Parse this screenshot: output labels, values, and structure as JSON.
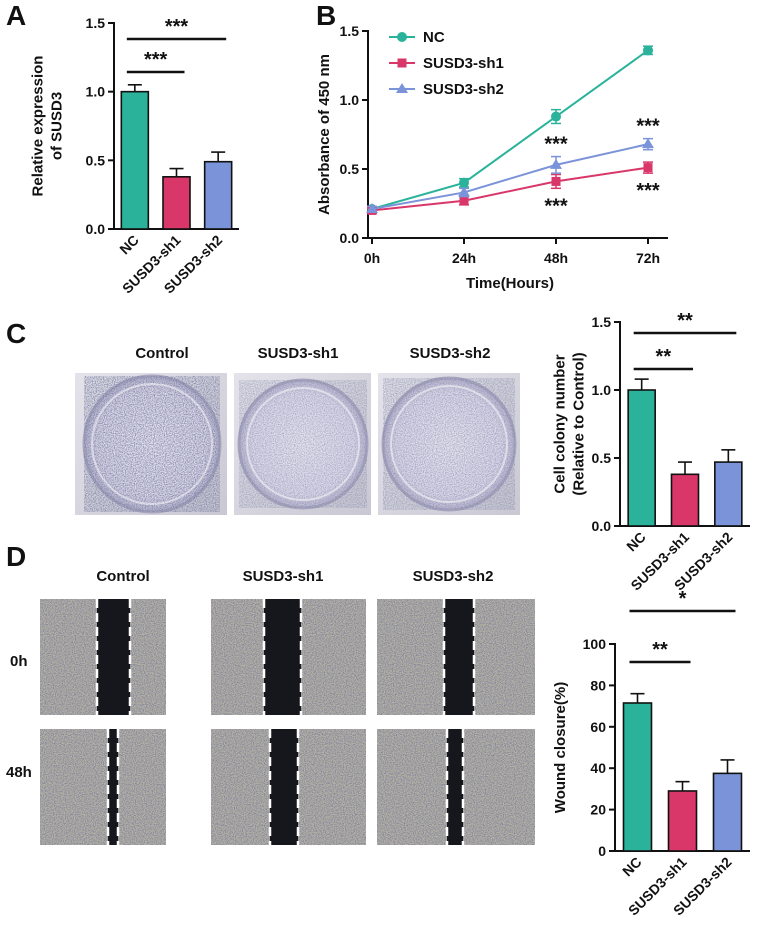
{
  "panels": {
    "A": "A",
    "B": "B",
    "C": "C",
    "D": "D"
  },
  "colors": {
    "nc": "#2ab39a",
    "sh1": "#d9366a",
    "sh2": "#7b93d8",
    "text": "#111111"
  },
  "panelC": {
    "labels": [
      "Control",
      "SUSD3-sh1",
      "SUSD3-sh2"
    ]
  },
  "panelD": {
    "labels": [
      "Control",
      "SUSD3-sh1",
      "SUSD3-sh2"
    ],
    "rows": [
      "0h",
      "48h"
    ]
  },
  "chart_data": [
    {
      "id": "A",
      "type": "bar",
      "categories": [
        "NC",
        "SUSD3-sh1",
        "SUSD3-sh2"
      ],
      "values": [
        1.0,
        0.38,
        0.49
      ],
      "errors": [
        0.05,
        0.06,
        0.07
      ],
      "ylabel": "Relative expression of SUSD3",
      "ylabel_lines": [
        "Relative expression",
        "of SUSD3"
      ],
      "ylim": [
        0,
        1.5
      ],
      "yticks": [
        "0.0",
        "0.5",
        "1.0",
        "1.5"
      ],
      "significance": [
        {
          "from": "NC",
          "to": "SUSD3-sh1",
          "label": "***"
        },
        {
          "from": "NC",
          "to": "SUSD3-sh2",
          "label": "***"
        }
      ]
    },
    {
      "id": "B",
      "type": "line",
      "x": [
        "0h",
        "24h",
        "48h",
        "72h"
      ],
      "xlabel": "Time(Hours)",
      "ylabel": "Absorbance of 450 nm",
      "ylim": [
        0,
        1.5
      ],
      "yticks": [
        "0.0",
        "0.5",
        "1.0",
        "1.5"
      ],
      "legend_position": "top-left",
      "series": [
        {
          "name": "NC",
          "marker": "circle",
          "values": [
            0.21,
            0.4,
            0.88,
            1.36
          ],
          "errors": [
            0.02,
            0.03,
            0.05,
            0.03
          ]
        },
        {
          "name": "SUSD3-sh1",
          "marker": "square",
          "values": [
            0.2,
            0.27,
            0.41,
            0.51
          ],
          "errors": [
            0.02,
            0.03,
            0.05,
            0.04
          ]
        },
        {
          "name": "SUSD3-sh2",
          "marker": "triangle",
          "values": [
            0.21,
            0.33,
            0.53,
            0.68
          ],
          "errors": [
            0.02,
            0.03,
            0.06,
            0.04
          ]
        }
      ],
      "annotations": [
        {
          "x": "48h",
          "label": "***",
          "position": "above"
        },
        {
          "x": "48h",
          "label": "***",
          "position": "below"
        },
        {
          "x": "72h",
          "label": "***",
          "position": "above"
        },
        {
          "x": "72h",
          "label": "***",
          "position": "below"
        }
      ]
    },
    {
      "id": "C",
      "type": "bar",
      "categories": [
        "NC",
        "SUSD3-sh1",
        "SUSD3-sh2"
      ],
      "values": [
        1.0,
        0.38,
        0.47
      ],
      "errors": [
        0.08,
        0.09,
        0.09
      ],
      "ylabel": "Cell colony number (Relative to Control)",
      "ylabel_lines": [
        "Cell colony number",
        "(Relative to Control)"
      ],
      "ylim": [
        0,
        1.5
      ],
      "yticks": [
        "0.0",
        "0.5",
        "1.0",
        "1.5"
      ],
      "significance": [
        {
          "from": "NC",
          "to": "SUSD3-sh1",
          "label": "**"
        },
        {
          "from": "NC",
          "to": "SUSD3-sh2",
          "label": "**"
        }
      ]
    },
    {
      "id": "D",
      "type": "bar",
      "categories": [
        "NC",
        "SUSD3-sh1",
        "SUSD3-sh2"
      ],
      "values": [
        71.5,
        29,
        37.5
      ],
      "errors": [
        4.5,
        4.5,
        6.5
      ],
      "ylabel": "Wound closure(%)",
      "ylabel_lines": [
        "Wound closure(%)"
      ],
      "ylim": [
        0,
        100
      ],
      "yticks": [
        "0",
        "20",
        "40",
        "60",
        "80",
        "100"
      ],
      "significance": [
        {
          "from": "NC",
          "to": "SUSD3-sh1",
          "label": "**"
        },
        {
          "from": "NC",
          "to": "SUSD3-sh2",
          "label": "*"
        }
      ]
    }
  ]
}
